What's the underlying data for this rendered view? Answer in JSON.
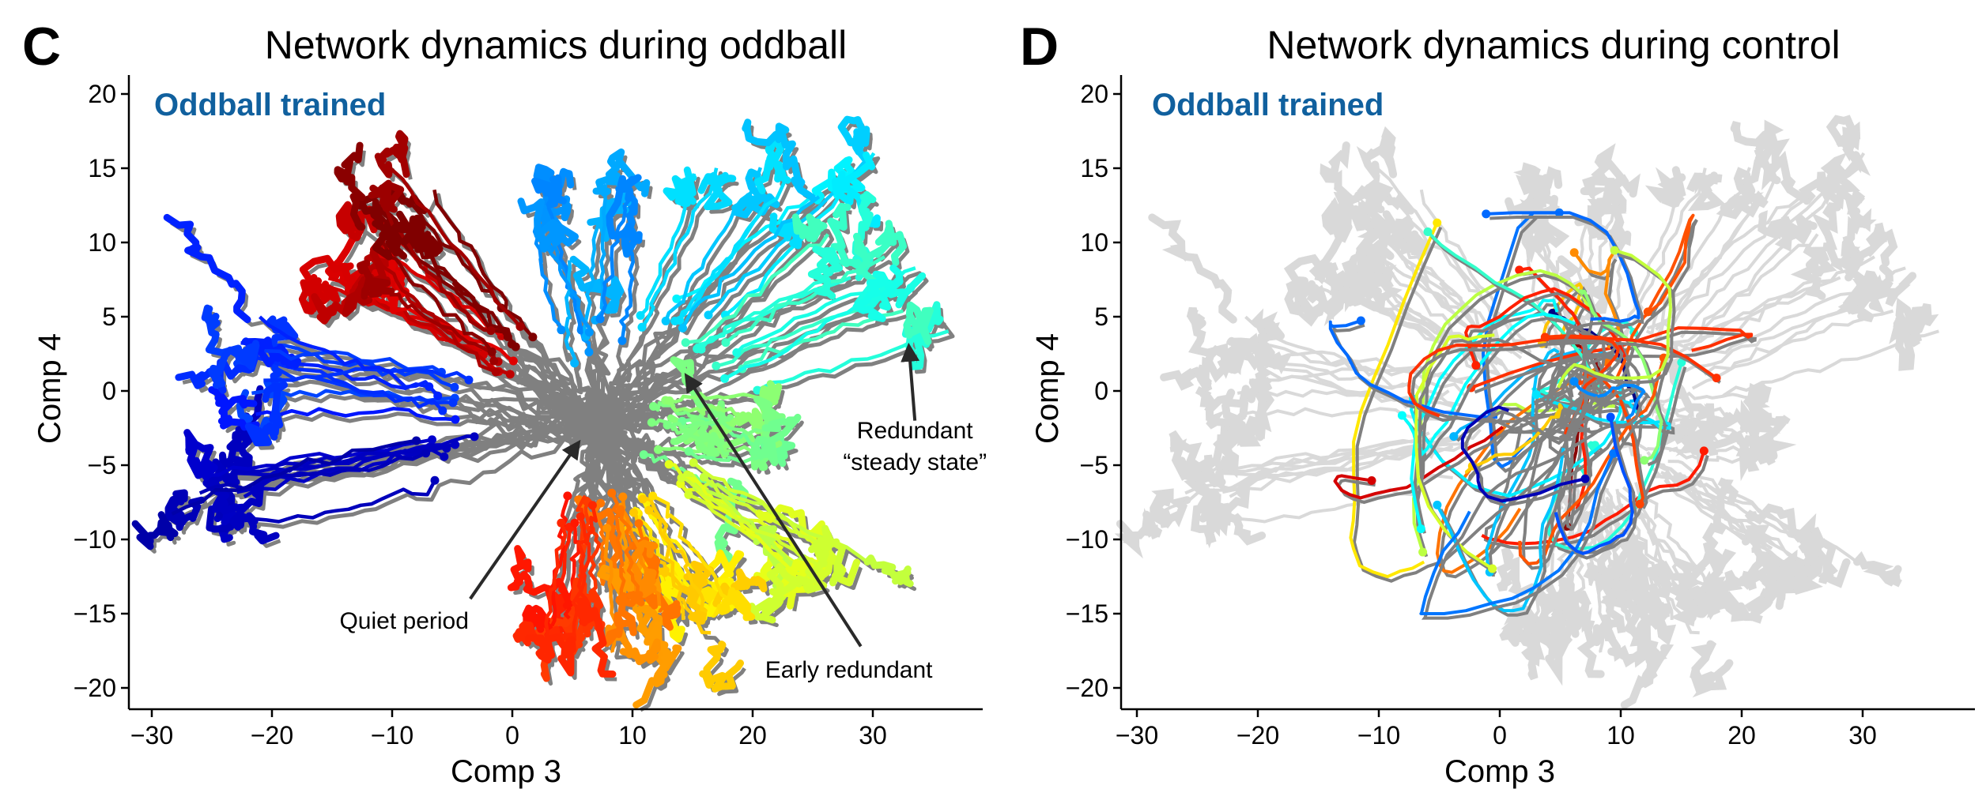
{
  "colors": {
    "inset_label": "#10609e",
    "gray_trajectory": "#808080",
    "background_trajectory": "#d9d9d9",
    "arrow": "#2a2a2a"
  },
  "chart_data": [
    {
      "type": "line",
      "panel": "C",
      "title": "Network dynamics during oddball",
      "inset_label": "Oddball trained",
      "xlabel": "Comp 3",
      "ylabel": "Comp 4",
      "xlim": [
        -31,
        39
      ],
      "ylim": [
        -21.5,
        21.5
      ],
      "xticks": [
        -30,
        -20,
        -10,
        0,
        10,
        20,
        30
      ],
      "yticks": [
        -20,
        -15,
        -10,
        -5,
        0,
        5,
        10,
        15,
        20
      ],
      "xtick_labels": [
        "−30",
        "−20",
        "−10",
        "0",
        "10",
        "20",
        "30"
      ],
      "ytick_labels": [
        "−20",
        "−15",
        "−10",
        "−5",
        "0",
        "5",
        "10",
        "15",
        "20"
      ],
      "colormap": "jet",
      "center": [
        7,
        -2
      ],
      "clusters": [
        {
          "name": "blue-left",
          "c": 0.06,
          "end": [
            -24,
            -7
          ],
          "spread": [
            3.5,
            2.5
          ]
        },
        {
          "name": "blue-upper",
          "c": 0.17,
          "end": [
            -20,
            2
          ],
          "spread": [
            4,
            2.5
          ]
        },
        {
          "name": "sky-top",
          "c": 0.28,
          "end": [
            5,
            12
          ],
          "spread": [
            7,
            3
          ]
        },
        {
          "name": "light-blue-top",
          "c": 0.34,
          "end": [
            24,
            15
          ],
          "spread": [
            6,
            3
          ]
        },
        {
          "name": "cyan-right",
          "c": 0.42,
          "end": [
            30,
            7
          ],
          "spread": [
            4,
            3
          ]
        },
        {
          "name": "aqua-mid",
          "c": 0.5,
          "end": [
            20,
            -3
          ],
          "spread": [
            4,
            3
          ]
        },
        {
          "name": "green-right",
          "c": 0.58,
          "end": [
            25,
            -11
          ],
          "spread": [
            4,
            2
          ]
        },
        {
          "name": "lime-bottom",
          "c": 0.66,
          "end": [
            16,
            -14
          ],
          "spread": [
            4,
            2
          ]
        },
        {
          "name": "yellow-bottom",
          "c": 0.74,
          "end": [
            11,
            -15
          ],
          "spread": [
            3,
            2
          ]
        },
        {
          "name": "orange-bottom",
          "c": 0.84,
          "end": [
            5,
            -16
          ],
          "spread": [
            3,
            3
          ]
        },
        {
          "name": "red-arm",
          "c": 0.93,
          "end": [
            -13,
            8
          ],
          "spread": [
            3,
            4
          ]
        },
        {
          "name": "dark-red-arm",
          "c": 0.99,
          "end": [
            -10,
            11
          ],
          "spread": [
            3,
            4
          ]
        }
      ],
      "annotations": [
        {
          "text": "Quiet period",
          "text_at": [
            -9,
            -16
          ],
          "arrow_from": [
            -3.5,
            -14
          ],
          "arrow_to": [
            5.5,
            -3.5
          ]
        },
        {
          "text": "Early redundant",
          "text_at": [
            28,
            -19.3
          ],
          "arrow_from": [
            29,
            -17.2
          ],
          "arrow_to": [
            14.5,
            1
          ]
        },
        {
          "text": "Redundant",
          "text2": "“steady state”",
          "text_at": [
            33.5,
            -3.2
          ],
          "arrow_from": [
            33.5,
            -2
          ],
          "arrow_to": [
            33,
            3
          ]
        }
      ]
    },
    {
      "type": "line",
      "panel": "D",
      "title": "Network dynamics during control",
      "inset_label": "Oddball trained",
      "xlabel": "Comp 3",
      "ylabel": "Comp 4",
      "xlim": [
        -31,
        39
      ],
      "ylim": [
        -21.5,
        21.5
      ],
      "xticks": [
        -30,
        -20,
        -10,
        0,
        10,
        20,
        30
      ],
      "yticks": [
        -20,
        -15,
        -10,
        -5,
        0,
        5,
        10,
        15,
        20
      ],
      "xtick_labels": [
        "−30",
        "−20",
        "−10",
        "0",
        "10",
        "20",
        "30"
      ],
      "ytick_labels": [
        "−20",
        "−15",
        "−10",
        "−5",
        "0",
        "5",
        "10",
        "15",
        "20"
      ],
      "colormap": "jet",
      "background": "oddball trajectories in light gray",
      "tangle_center": [
        6,
        -1
      ],
      "tangle_extent": {
        "x": [
          -14,
          25
        ],
        "y": [
          -15,
          12
        ]
      },
      "trajectory_count": 40
    }
  ]
}
